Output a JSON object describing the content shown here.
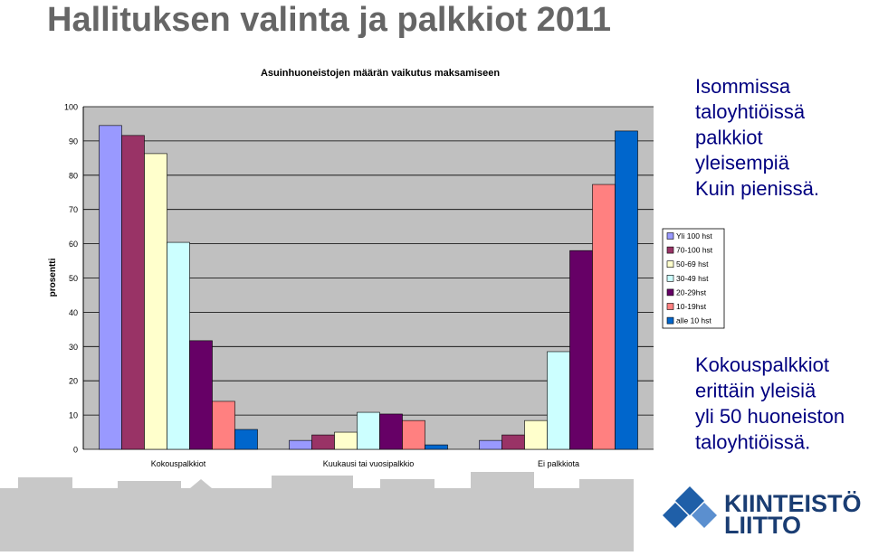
{
  "slide": {
    "title": "Hallituksen valinta ja palkkiot 2011",
    "note1": [
      "Isommissa",
      "taloyhtiöissä",
      "palkkiot",
      "yleisempiä",
      "Kuin pienissä."
    ],
    "note2": [
      "Kokouspalkkiot",
      "erittäin yleisiä",
      "yli 50 huoneiston",
      "taloyhtiöissä."
    ],
    "logo": [
      "KIINTEISTÖ",
      "LIITTO"
    ]
  },
  "chart_data": {
    "type": "bar",
    "title": "Asuinhuoneistojen määrän vaikutus maksamiseen",
    "y_label": "prosentti",
    "categories": [
      "Kokouspalkkiot",
      "Kuukausi tai vuosipalkkio",
      "Ei palkkiota"
    ],
    "series": [
      {
        "name": "Yli 100 hst",
        "color": "#9999ff",
        "values": [
          94.5,
          2.6,
          2.6
        ]
      },
      {
        "name": "70-100 hst",
        "color": "#993366",
        "values": [
          91.6,
          4.2,
          4.2
        ]
      },
      {
        "name": "50-69 hst",
        "color": "#ffffcc",
        "values": [
          86.3,
          5.0,
          8.4
        ]
      },
      {
        "name": "30-49 hst",
        "color": "#ccffff",
        "values": [
          60.4,
          10.8,
          28.5
        ]
      },
      {
        "name": "20-29hst",
        "color": "#660066",
        "values": [
          31.7,
          10.3,
          58
        ]
      },
      {
        "name": "10-19hst",
        "color": "#ff8080",
        "values": [
          14,
          8.4,
          77.3
        ]
      },
      {
        "name": "alle 10 hst",
        "color": "#0066cc",
        "values": [
          5.8,
          1.3,
          92.9
        ]
      }
    ],
    "ylim": [
      0,
      100
    ],
    "yticks": [
      0,
      10,
      20,
      30,
      40,
      50,
      60,
      70,
      80,
      90,
      100
    ],
    "grid": true
  }
}
